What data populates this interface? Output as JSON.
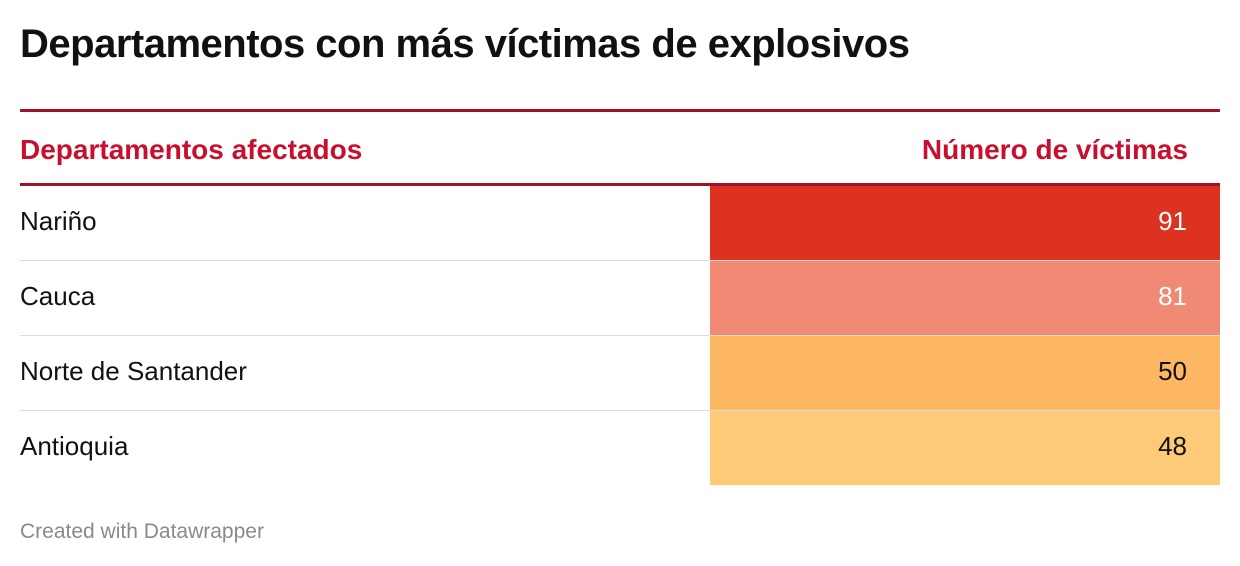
{
  "header": {
    "title": "Departamentos con más víctimas de explosivos"
  },
  "table": {
    "columns": [
      "Departamentos afectados",
      "Número de víctimas"
    ],
    "rows": [
      {
        "label": "Nariño",
        "value": "91",
        "bg": "#dc321f",
        "fg": "#ffffff"
      },
      {
        "label": "Cauca",
        "value": "81",
        "bg": "#f08a74",
        "fg": "#ffffff"
      },
      {
        "label": "Norte de Santander",
        "value": "50",
        "bg": "#fdb662",
        "fg": "#111111"
      },
      {
        "label": "Antioquia",
        "value": "48",
        "bg": "#fdcb78",
        "fg": "#111111"
      }
    ]
  },
  "chart_data": {
    "type": "table",
    "title": "Departamentos con más víctimas de explosivos",
    "columns": [
      "Departamentos afectados",
      "Número de víctimas"
    ],
    "categories": [
      "Nariño",
      "Cauca",
      "Norte de Santander",
      "Antioquia"
    ],
    "values": [
      91,
      81,
      50,
      48
    ]
  },
  "footer": {
    "credit": "Created with Datawrapper"
  },
  "colors": {
    "rule": "#a0112a",
    "header_text": "#c8102e"
  }
}
